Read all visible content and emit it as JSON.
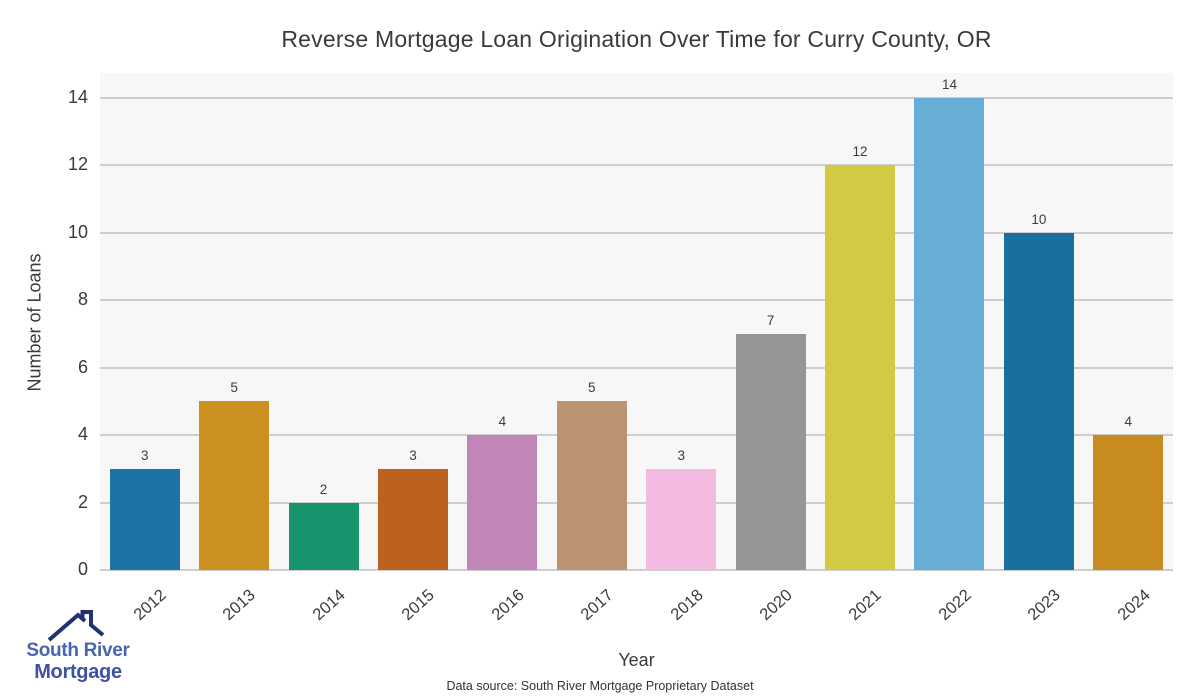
{
  "chart_data": {
    "type": "bar",
    "title": "Reverse Mortgage Loan Origination Over Time for Curry County, OR",
    "xlabel": "Year",
    "ylabel": "Number of Loans",
    "categories": [
      "2012",
      "2013",
      "2014",
      "2015",
      "2016",
      "2017",
      "2018",
      "2020",
      "2021",
      "2022",
      "2023",
      "2024"
    ],
    "values": [
      3,
      5,
      2,
      3,
      4,
      5,
      3,
      7,
      12,
      14,
      10,
      4
    ],
    "bar_colors": [
      "#1d73a6",
      "#cb901f",
      "#18946e",
      "#bb621e",
      "#c186b8",
      "#bc9471",
      "#f2bade",
      "#969696",
      "#d2ca43",
      "#66aed5",
      "#19709f",
      "#c78b20"
    ],
    "yticks": [
      0,
      2,
      4,
      6,
      8,
      10,
      12,
      14
    ],
    "ylim": [
      0,
      14.73
    ],
    "grid": true,
    "legend": "none",
    "plot_background": "#f7f7f7",
    "grid_color": "#cecece",
    "bar_value_labels": [
      3,
      5,
      2,
      3,
      4,
      5,
      3,
      7,
      12,
      14,
      10,
      4
    ]
  },
  "footer": {
    "source": "Data source: South River Mortgage Proprietary Dataset"
  },
  "logo": {
    "line1": "South River",
    "line2": "Mortgage",
    "text_color_line1": "#4a66b2",
    "text_color_line2": "#3e52a4",
    "roof_color": "#23306e",
    "roof_icon": "house-roof-with-chimney"
  }
}
